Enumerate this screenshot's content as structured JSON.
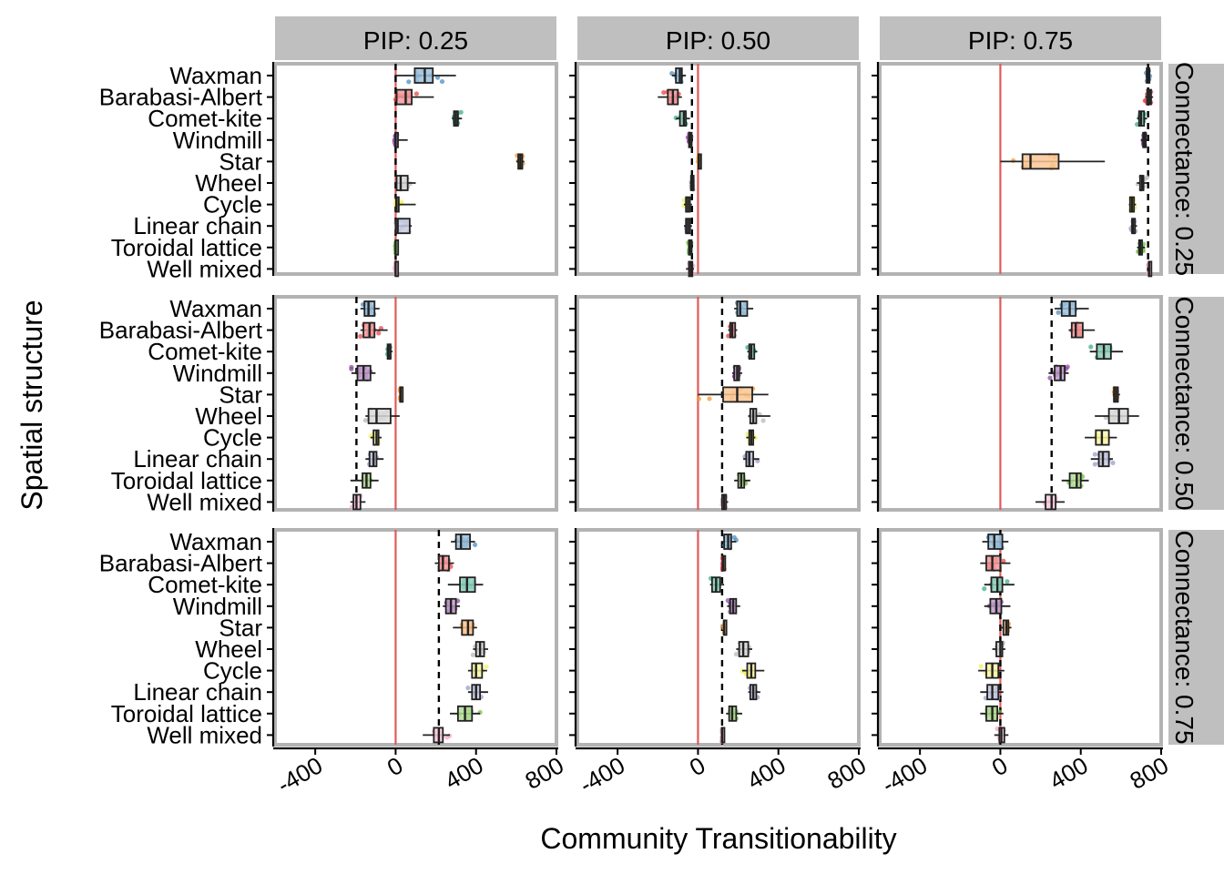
{
  "chart_data": {
    "type": "boxplot",
    "xlabel": "Community Transitionability",
    "ylabel": "Spatial structure",
    "xlim": [
      -600,
      800
    ],
    "xticks": [
      -400,
      0,
      400,
      800
    ],
    "col_facets": [
      "PIP: 0.25",
      "PIP: 0.50",
      "PIP: 0.75"
    ],
    "row_facets": [
      "Connectance: 0.25",
      "Connectance: 0.50",
      "Connectance: 0.75"
    ],
    "categories": [
      "Waxman",
      "Barabasi-Albert",
      "Comet-kite",
      "Windmill",
      "Star",
      "Wheel",
      "Cycle",
      "Linear chain",
      "Toroidal lattice",
      "Well mixed"
    ],
    "colors": {
      "Waxman": "#4f8fc0",
      "Barabasi-Albert": "#e8474b",
      "Comet-kite": "#3fae8a",
      "Windmill": "#8e4fa0",
      "Star": "#f59a3a",
      "Wheel": "#b9b9b9",
      "Cycle": "#f4f066",
      "Linear chain": "#9b9ec9",
      "Toroidal lattice": "#76c043",
      "Well mixed": "#f4a7c8"
    },
    "reference_line_color": "#e05a5a",
    "panels": [
      {
        "row": 0,
        "col": 0,
        "mean": 0,
        "boxes": {
          "Waxman": [
            -5,
            95,
            145,
            185,
            300
          ],
          "Barabasi-Albert": [
            0,
            5,
            50,
            80,
            190
          ],
          "Comet-kite": [
            280,
            290,
            300,
            310,
            330
          ],
          "Windmill": [
            -5,
            -2,
            0,
            3,
            60
          ],
          "Star": [
            600,
            610,
            620,
            630,
            640
          ],
          "Wheel": [
            0,
            5,
            25,
            60,
            100
          ],
          "Cycle": [
            0,
            2,
            5,
            10,
            100
          ],
          "Linear chain": [
            0,
            0,
            10,
            70,
            80
          ],
          "Toroidal lattice": [
            -3,
            -1,
            0,
            1,
            3
          ],
          "Well mixed": [
            -3,
            -1,
            0,
            1,
            3
          ]
        }
      },
      {
        "row": 0,
        "col": 1,
        "mean": -30,
        "boxes": {
          "Waxman": [
            -130,
            -110,
            -90,
            -80,
            -60
          ],
          "Barabasi-Albert": [
            -200,
            -150,
            -125,
            -100,
            -80
          ],
          "Comet-kite": [
            -110,
            -90,
            -70,
            -60,
            -40
          ],
          "Windmill": [
            -50,
            -45,
            -40,
            -35,
            -30
          ],
          "Star": [
            0,
            2,
            5,
            8,
            12
          ],
          "Wheel": [
            -40,
            -35,
            -30,
            -25,
            -20
          ],
          "Cycle": [
            -70,
            -60,
            -50,
            -40,
            -30
          ],
          "Linear chain": [
            -70,
            -60,
            -50,
            -40,
            -30
          ],
          "Toroidal lattice": [
            -50,
            -45,
            -40,
            -35,
            -30
          ],
          "Well mixed": [
            -60,
            -45,
            -35,
            -28,
            -20
          ]
        }
      },
      {
        "row": 0,
        "col": 2,
        "mean": 735,
        "boxes": {
          "Waxman": [
            725,
            728,
            735,
            742,
            745
          ],
          "Barabasi-Albert": [
            720,
            730,
            740,
            750,
            760
          ],
          "Comet-kite": [
            680,
            690,
            700,
            715,
            730
          ],
          "Windmill": [
            700,
            710,
            715,
            720,
            730
          ],
          "Star": [
            0,
            110,
            150,
            290,
            520
          ],
          "Wheel": [
            680,
            695,
            705,
            712,
            730
          ],
          "Cycle": [
            640,
            645,
            655,
            665,
            675
          ],
          "Linear chain": [
            650,
            655,
            660,
            670,
            680
          ],
          "Toroidal lattice": [
            680,
            690,
            695,
            705,
            720
          ],
          "Well mixed": [
            735,
            738,
            740,
            745,
            750
          ]
        }
      },
      {
        "row": 1,
        "col": 0,
        "mean": -195,
        "boxes": {
          "Waxman": [
            -175,
            -155,
            -135,
            -105,
            -80
          ],
          "Barabasi-Albert": [
            -175,
            -160,
            -130,
            -105,
            -40
          ],
          "Comet-kite": [
            -45,
            -40,
            -35,
            -25,
            -15
          ],
          "Windmill": [
            -220,
            -190,
            -160,
            -125,
            -100
          ],
          "Star": [
            20,
            22,
            25,
            28,
            30
          ],
          "Wheel": [
            -150,
            -135,
            -95,
            -25,
            20
          ],
          "Cycle": [
            -125,
            -110,
            -95,
            -85,
            -70
          ],
          "Linear chain": [
            -150,
            -130,
            -110,
            -95,
            -60
          ],
          "Toroidal lattice": [
            -225,
            -165,
            -145,
            -125,
            -85
          ],
          "Well mixed": [
            -225,
            -210,
            -195,
            -175,
            -150
          ]
        }
      },
      {
        "row": 1,
        "col": 1,
        "mean": 120,
        "boxes": {
          "Waxman": [
            180,
            195,
            210,
            245,
            275
          ],
          "Barabasi-Albert": [
            150,
            160,
            170,
            185,
            195
          ],
          "Comet-kite": [
            245,
            255,
            265,
            280,
            295
          ],
          "Windmill": [
            170,
            180,
            195,
            205,
            220
          ],
          "Star": [
            0,
            125,
            195,
            270,
            350
          ],
          "Wheel": [
            250,
            260,
            275,
            290,
            360
          ],
          "Cycle": [
            240,
            255,
            265,
            275,
            285
          ],
          "Linear chain": [
            225,
            240,
            255,
            275,
            305
          ],
          "Toroidal lattice": [
            180,
            200,
            215,
            230,
            260
          ],
          "Well mixed": [
            115,
            120,
            130,
            140,
            150
          ]
        }
      },
      {
        "row": 1,
        "col": 2,
        "mean": 255,
        "boxes": {
          "Waxman": [
            270,
            305,
            345,
            375,
            440
          ],
          "Barabasi-Albert": [
            340,
            355,
            375,
            410,
            470
          ],
          "Comet-kite": [
            445,
            480,
            515,
            550,
            610
          ],
          "Windmill": [
            240,
            270,
            300,
            320,
            340
          ],
          "Star": [
            560,
            565,
            575,
            585,
            595
          ],
          "Wheel": [
            470,
            540,
            590,
            635,
            690
          ],
          "Cycle": [
            420,
            475,
            505,
            540,
            580
          ],
          "Linear chain": [
            450,
            490,
            510,
            540,
            560
          ],
          "Toroidal lattice": [
            305,
            345,
            380,
            400,
            440
          ],
          "Well mixed": [
            175,
            225,
            255,
            275,
            320
          ]
        }
      },
      {
        "row": 2,
        "col": 0,
        "mean": 215,
        "boxes": {
          "Waxman": [
            275,
            300,
            325,
            370,
            395
          ],
          "Barabasi-Albert": [
            195,
            215,
            235,
            265,
            290
          ],
          "Comet-kite": [
            260,
            320,
            355,
            395,
            435
          ],
          "Windmill": [
            235,
            250,
            275,
            300,
            320
          ],
          "Star": [
            285,
            330,
            360,
            385,
            405
          ],
          "Wheel": [
            385,
            400,
            420,
            440,
            460
          ],
          "Cycle": [
            360,
            380,
            400,
            430,
            455
          ],
          "Linear chain": [
            360,
            380,
            400,
            420,
            460
          ],
          "Toroidal lattice": [
            270,
            310,
            345,
            380,
            420
          ],
          "Well mixed": [
            135,
            190,
            215,
            235,
            270
          ]
        }
      },
      {
        "row": 2,
        "col": 1,
        "mean": 120,
        "boxes": {
          "Waxman": [
            115,
            130,
            150,
            165,
            190
          ],
          "Barabasi-Albert": [
            120,
            122,
            125,
            128,
            130
          ],
          "Comet-kite": [
            60,
            70,
            90,
            110,
            130
          ],
          "Windmill": [
            145,
            160,
            175,
            190,
            210
          ],
          "Star": [
            125,
            128,
            130,
            132,
            135
          ],
          "Wheel": [
            190,
            205,
            225,
            250,
            270
          ],
          "Cycle": [
            220,
            245,
            265,
            285,
            330
          ],
          "Linear chain": [
            250,
            260,
            275,
            290,
            310
          ],
          "Toroidal lattice": [
            140,
            155,
            170,
            190,
            220
          ],
          "Well mixed": [
            115,
            118,
            120,
            123,
            125
          ]
        }
      },
      {
        "row": 2,
        "col": 2,
        "mean": 0,
        "boxes": {
          "Waxman": [
            -90,
            -60,
            -30,
            10,
            40
          ],
          "Barabasi-Albert": [
            -100,
            -70,
            -40,
            0,
            50
          ],
          "Comet-kite": [
            -80,
            -45,
            -15,
            10,
            70
          ],
          "Windmill": [
            -80,
            -50,
            -20,
            5,
            50
          ],
          "Star": [
            0,
            15,
            30,
            40,
            55
          ],
          "Wheel": [
            -40,
            -20,
            0,
            10,
            25
          ],
          "Cycle": [
            -110,
            -70,
            -40,
            -10,
            20
          ],
          "Linear chain": [
            -100,
            -65,
            -40,
            -10,
            15
          ],
          "Toroidal lattice": [
            -100,
            -70,
            -40,
            -15,
            15
          ],
          "Well mixed": [
            -30,
            -5,
            5,
            20,
            40
          ]
        }
      }
    ]
  }
}
